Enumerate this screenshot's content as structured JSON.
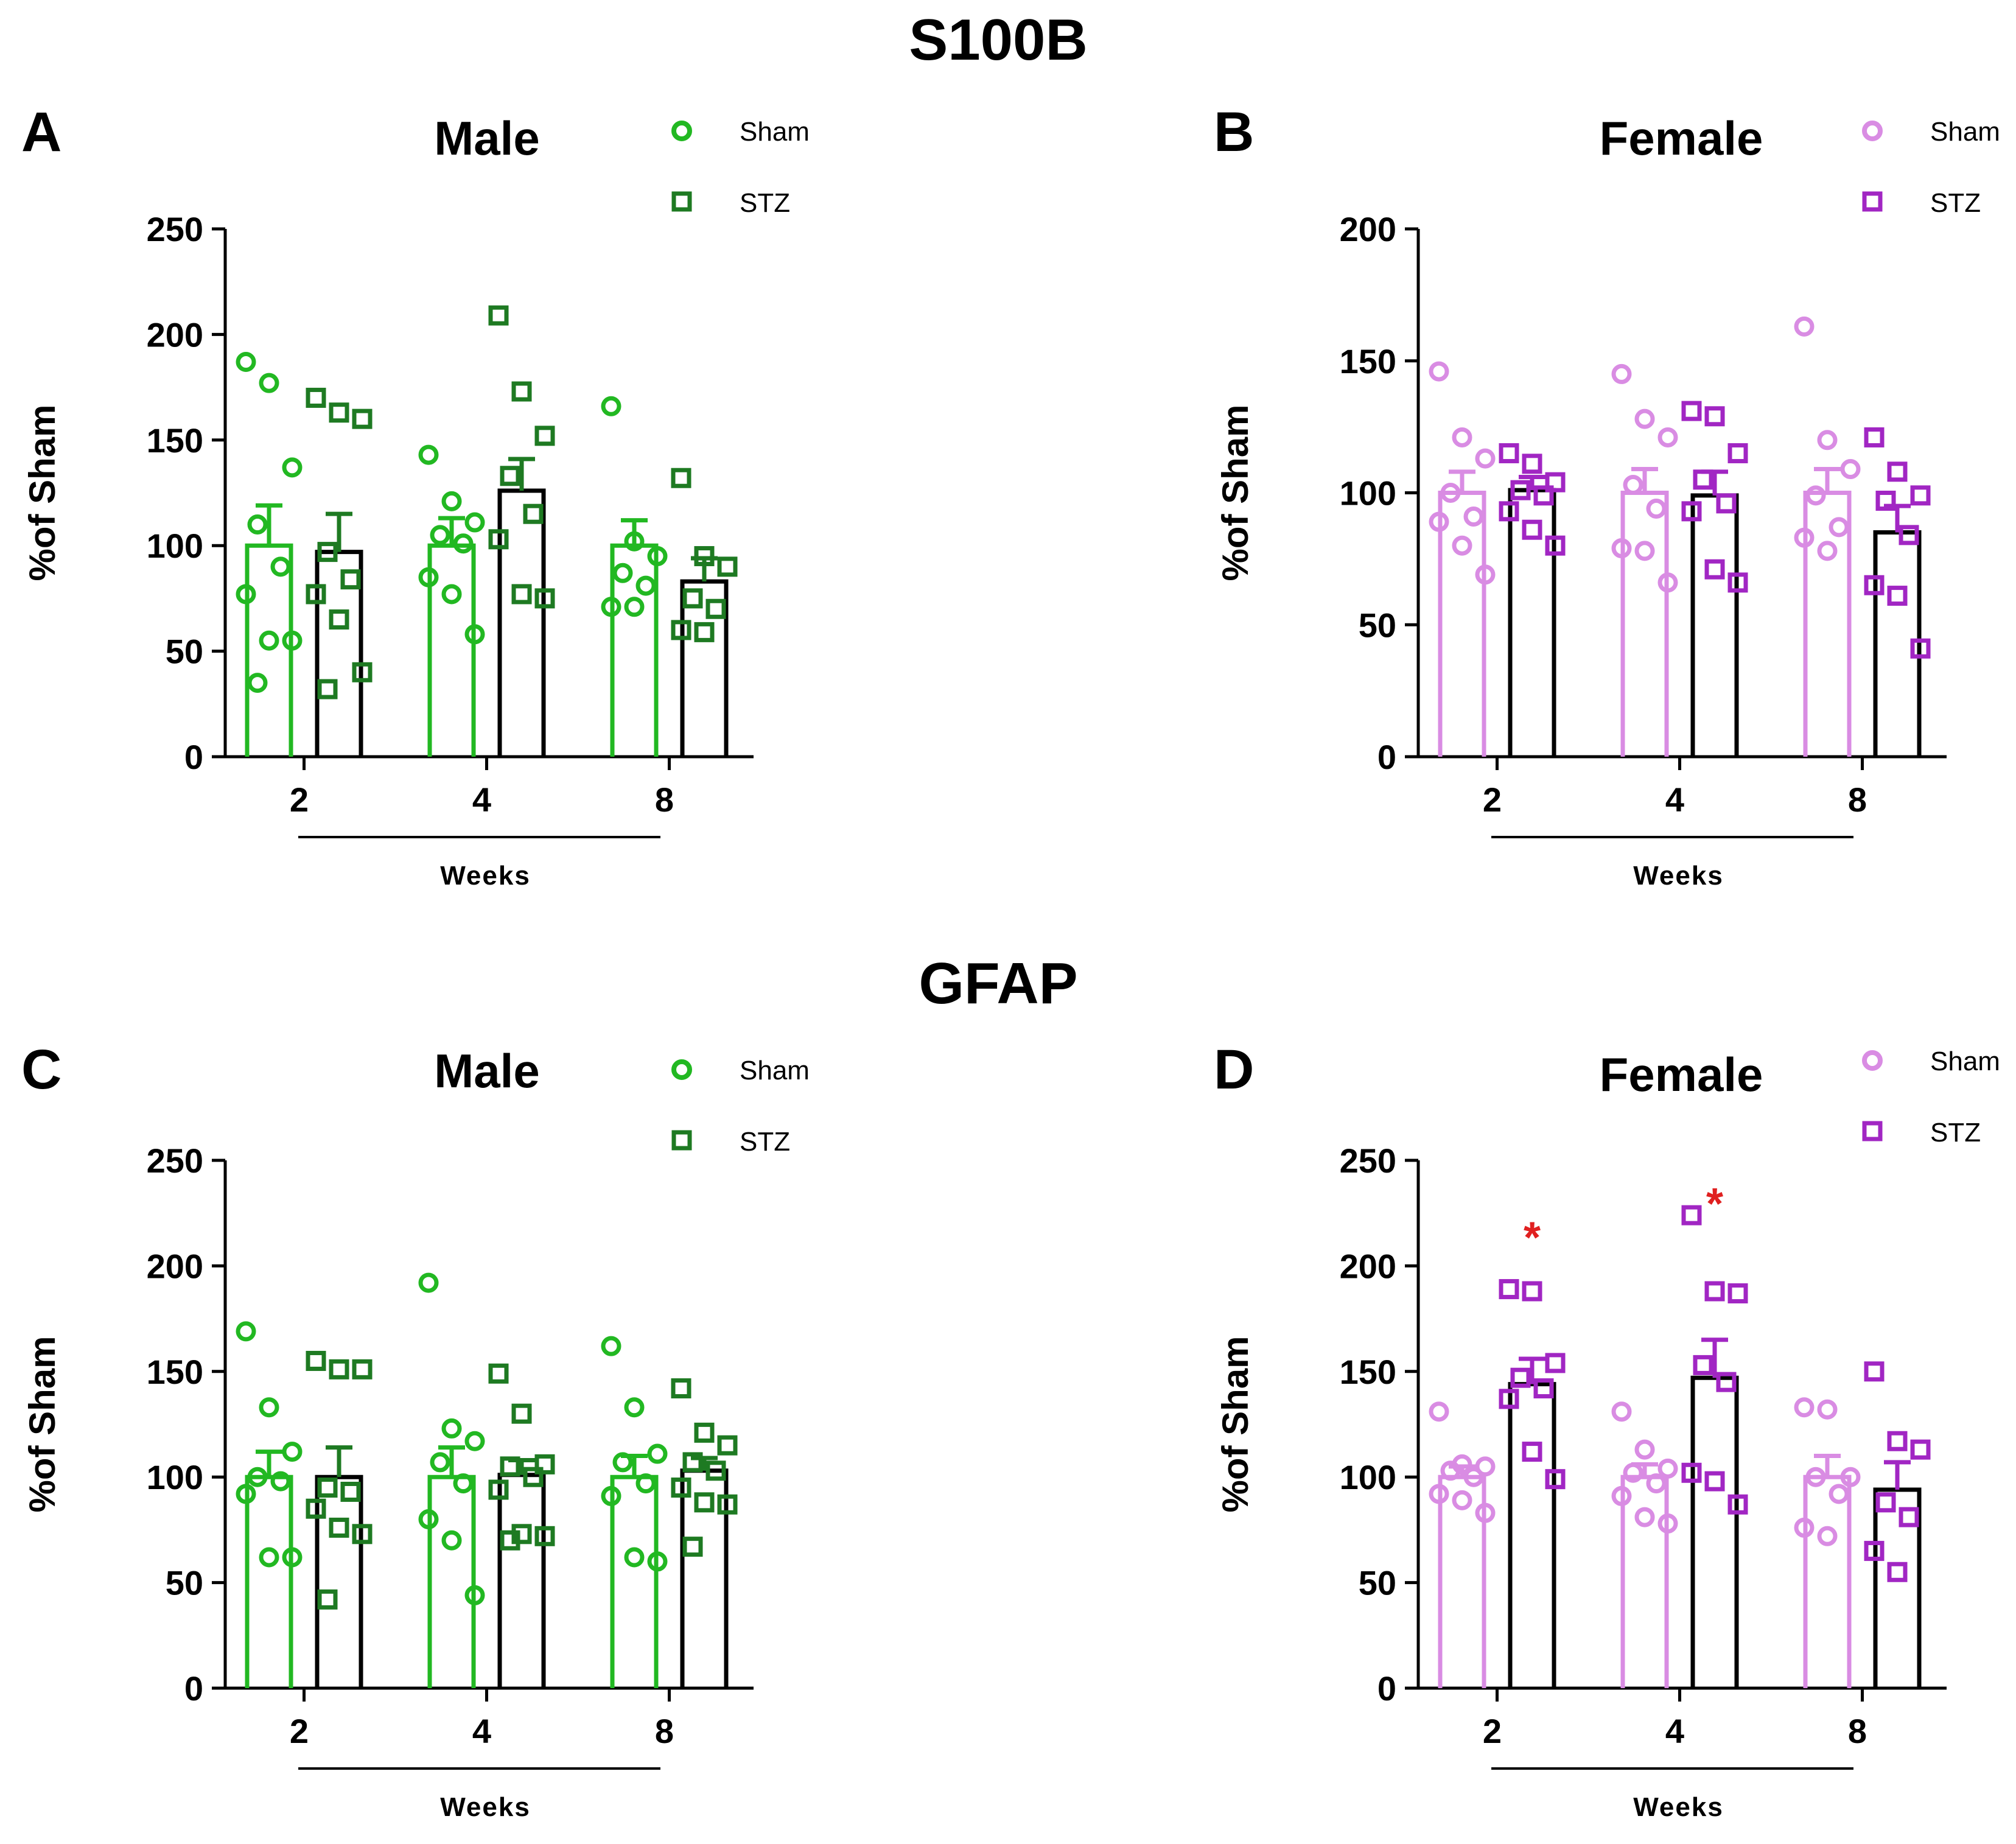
{
  "sections": [
    {
      "title": "S100B"
    },
    {
      "title": "GFAP"
    }
  ],
  "colors": {
    "male_sham": "#22b822",
    "male_stz": "#1e7a22",
    "female_sham": "#d98ce3",
    "female_stz": "#a126c3",
    "bar_outline_stz": "#000000",
    "axis": "#000000",
    "significance": "#e02020"
  },
  "chart_data": [
    {
      "panel": "A",
      "type": "bar",
      "title": "Male",
      "ylabel": "%of Sham",
      "xlabel": "Weeks",
      "categories": [
        "2",
        "4",
        "8"
      ],
      "ylim": [
        0,
        250
      ],
      "yticks": [
        0,
        50,
        100,
        150,
        200,
        250
      ],
      "legend": [
        "Sham",
        "STZ"
      ],
      "palette": "male",
      "series": [
        {
          "name": "Sham",
          "values": [
            100,
            100,
            100
          ],
          "sem": [
            19,
            13,
            12
          ],
          "points": [
            [
              187,
              177,
              137,
              110,
              90,
              77,
              55,
              55,
              35
            ],
            [
              143,
              121,
              111,
              105,
              101,
              85,
              77,
              58
            ],
            [
              166,
              102,
              95,
              87,
              81,
              71,
              71
            ]
          ]
        },
        {
          "name": "STZ",
          "values": [
            97,
            126,
            83
          ],
          "sem": [
            18,
            15,
            11
          ],
          "points": [
            [
              170,
              163,
              160,
              97,
              84,
              77,
              65,
              40,
              32
            ],
            [
              209,
              173,
              152,
              133,
              115,
              103,
              77,
              75
            ],
            [
              132,
              95,
              90,
              75,
              70,
              60,
              59
            ]
          ]
        }
      ],
      "significance": []
    },
    {
      "panel": "B",
      "type": "bar",
      "title": "Female",
      "ylabel": "%of Sham",
      "xlabel": "Weeks",
      "categories": [
        "2",
        "4",
        "8"
      ],
      "ylim": [
        0,
        200
      ],
      "yticks": [
        0,
        50,
        100,
        150,
        200
      ],
      "legend": [
        "Sham",
        "STZ"
      ],
      "palette": "female",
      "series": [
        {
          "name": "Sham",
          "values": [
            100,
            100,
            100
          ],
          "sem": [
            8,
            9,
            9
          ],
          "points": [
            [
              146,
              121,
              113,
              100,
              91,
              89,
              80,
              69
            ],
            [
              145,
              128,
              121,
              103,
              94,
              79,
              78,
              66
            ],
            [
              163,
              120,
              109,
              99,
              87,
              83,
              78
            ]
          ]
        },
        {
          "name": "STZ",
          "values": [
            101,
            99,
            85
          ],
          "sem": [
            5,
            9,
            10
          ],
          "points": [
            [
              115,
              111,
              104,
              101,
              99,
              93,
              86,
              80
            ],
            [
              131,
              129,
              115,
              105,
              96,
              93,
              71,
              66
            ],
            [
              121,
              108,
              99,
              97,
              84,
              65,
              61,
              41
            ]
          ]
        }
      ],
      "significance": []
    },
    {
      "panel": "C",
      "type": "bar",
      "title": "Male",
      "ylabel": "%of Sham",
      "xlabel": "Weeks",
      "categories": [
        "2",
        "4",
        "8"
      ],
      "ylim": [
        0,
        250
      ],
      "yticks": [
        0,
        50,
        100,
        150,
        200,
        250
      ],
      "legend": [
        "Sham",
        "STZ"
      ],
      "palette": "male",
      "series": [
        {
          "name": "Sham",
          "values": [
            100,
            100,
            100
          ],
          "sem": [
            12,
            14,
            10
          ],
          "points": [
            [
              169,
              133,
              112,
              100,
              98,
              92,
              62,
              62
            ],
            [
              192,
              123,
              117,
              107,
              97,
              80,
              70,
              44
            ],
            [
              162,
              133,
              111,
              107,
              97,
              91,
              62,
              60
            ]
          ]
        },
        {
          "name": "STZ",
          "values": [
            100,
            101,
            103
          ],
          "sem": [
            14,
            7,
            6
          ],
          "points": [
            [
              155,
              151,
              151,
              95,
              93,
              85,
              76,
              73,
              42
            ],
            [
              149,
              130,
              106,
              105,
              100,
              94,
              73,
              72,
              70
            ],
            [
              142,
              121,
              115,
              107,
              103,
              95,
              88,
              87,
              67
            ]
          ]
        }
      ],
      "significance": []
    },
    {
      "panel": "D",
      "type": "bar",
      "title": "Female",
      "ylabel": "%of Sham",
      "xlabel": "Weeks",
      "categories": [
        "2",
        "4",
        "8"
      ],
      "ylim": [
        0,
        250
      ],
      "yticks": [
        0,
        50,
        100,
        150,
        200,
        250
      ],
      "legend": [
        "Sham",
        "STZ"
      ],
      "palette": "female",
      "series": [
        {
          "name": "Sham",
          "values": [
            100,
            100,
            100
          ],
          "sem": [
            5,
            6,
            10
          ],
          "points": [
            [
              131,
              106,
              105,
              103,
              100,
              92,
              89,
              83
            ],
            [
              131,
              113,
              104,
              102,
              97,
              91,
              81,
              78
            ],
            [
              133,
              132,
              100,
              100,
              92,
              76,
              72
            ]
          ]
        },
        {
          "name": "STZ",
          "values": [
            144,
            147,
            94
          ],
          "sem": [
            12,
            18,
            13
          ],
          "points": [
            [
              189,
              188,
              154,
              147,
              142,
              137,
              112,
              99
            ],
            [
              224,
              188,
              187,
              153,
              145,
              102,
              98,
              87
            ],
            [
              150,
              117,
              113,
              88,
              81,
              65,
              55
            ]
          ]
        }
      ],
      "significance": [
        {
          "category": "2",
          "series": "STZ",
          "label": "*",
          "value": 215
        },
        {
          "category": "4",
          "series": "STZ",
          "label": "*",
          "value": 231
        }
      ]
    }
  ]
}
